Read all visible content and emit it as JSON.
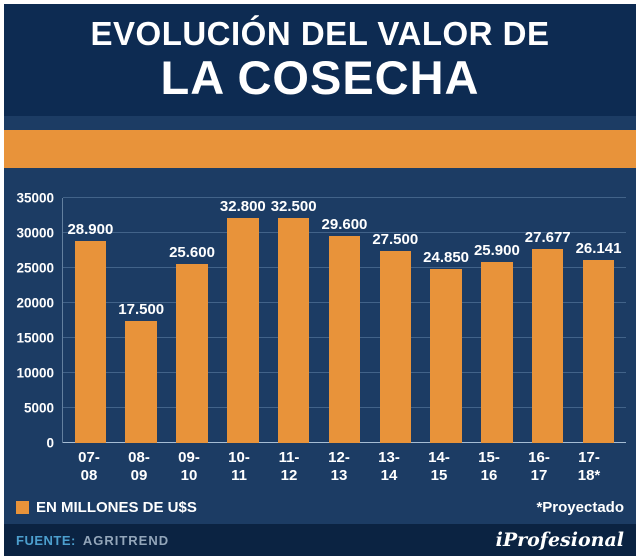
{
  "header": {
    "title_line1": "EVOLUCIÓN DEL VALOR DE",
    "title_line2": "LA COSECHA"
  },
  "chart_data": {
    "type": "bar",
    "title": "Evolución del valor de la cosecha",
    "categories": [
      "07-08",
      "08-09",
      "09-10",
      "10-11",
      "11-12",
      "12-13",
      "13-14",
      "14-15",
      "15-16",
      "16-17",
      "17-18*"
    ],
    "values": [
      28900,
      17500,
      25600,
      32800,
      32500,
      29600,
      27500,
      24850,
      25900,
      27677,
      26141
    ],
    "value_labels": [
      "28.900",
      "17.500",
      "25.600",
      "32.800",
      "32.500",
      "29.600",
      "27.500",
      "24.850",
      "25.900",
      "27.677",
      "26.141"
    ],
    "xlabel": "",
    "ylabel": "",
    "ylim": [
      0,
      35000
    ],
    "yticks": [
      0,
      5000,
      10000,
      15000,
      20000,
      25000,
      30000,
      35000
    ],
    "grid": true,
    "legend_position": "bottom",
    "bar_color": "#E8933A"
  },
  "legend": {
    "label": "EN MILLONES DE U$S",
    "note": "*Proyectado"
  },
  "footer": {
    "source_label": "FUENTE:",
    "source_value": "AGRITREND",
    "brand": "iProfesional"
  },
  "colors": {
    "navy": "#1C3C64",
    "title_bg": "#0D2B52",
    "orange": "#E8933A",
    "footer_bg": "#0B2342",
    "source_label": "#4C9FCE",
    "source_value": "#93A6BA"
  }
}
